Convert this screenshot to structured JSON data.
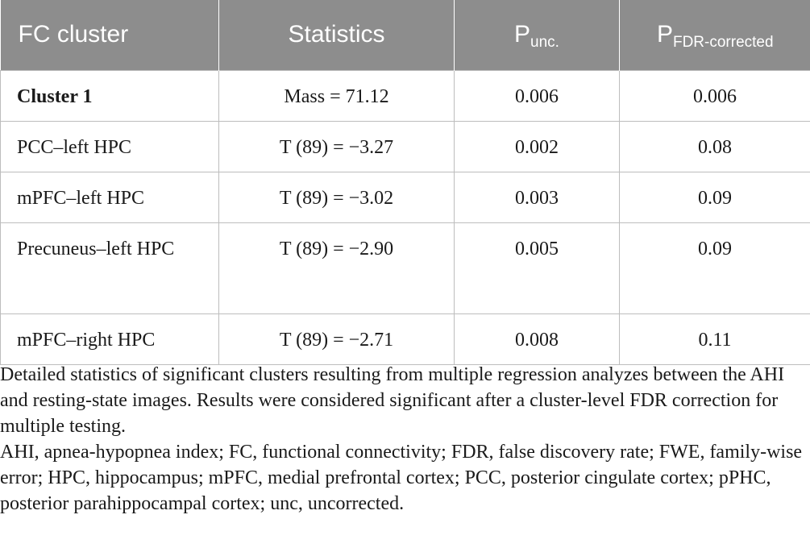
{
  "table": {
    "header": {
      "col1": "FC cluster",
      "col2": "Statistics",
      "col3_main": "P",
      "col3_sub": "unc.",
      "col4_main": "P",
      "col4_sub": "FDR-corrected"
    },
    "rows": [
      {
        "cluster": "Cluster 1",
        "stat": "Mass = 71.12",
        "p_unc": "0.006",
        "p_fdr": "0.006"
      },
      {
        "cluster": "PCC–left HPC",
        "stat": "T (89) = −3.27",
        "p_unc": "0.002",
        "p_fdr": "0.08"
      },
      {
        "cluster": "mPFC–left HPC",
        "stat": "T (89) = −3.02",
        "p_unc": "0.003",
        "p_fdr": "0.09"
      },
      {
        "cluster": "Precuneus–left HPC",
        "stat": "T (89) = −2.90",
        "p_unc": "0.005",
        "p_fdr": "0.09"
      },
      {
        "cluster": "mPFC–right HPC",
        "stat": "T (89) = −2.71",
        "p_unc": "0.008",
        "p_fdr": "0.11"
      }
    ]
  },
  "footnote": {
    "description": "Detailed statistics of significant clusters resulting from multiple regression analyzes between the AHI and resting-state images. Results were considered significant after a cluster-level FDR correction for multiple testing.",
    "abbreviations": "AHI, apnea-hypopnea index; FC, functional connectivity; FDR, false discovery rate; FWE, family-wise error; HPC, hippocampus; mPFC, medial prefrontal cortex; PCC, posterior cingulate cortex; pPHC, posterior parahippocampal cortex; unc, uncorrected."
  }
}
